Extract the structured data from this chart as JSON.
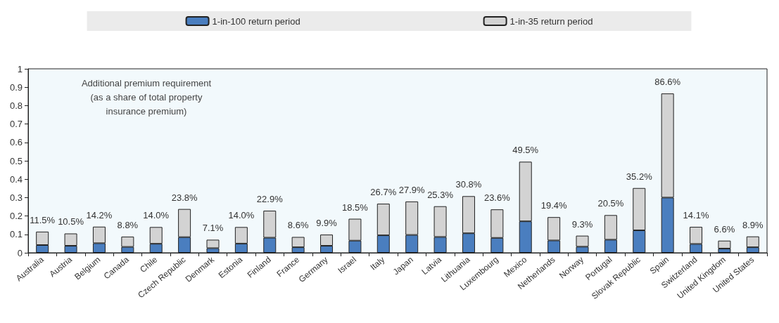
{
  "chart_data": {
    "type": "bar",
    "stacked": true,
    "categories": [
      "Australia",
      "Austria",
      "Belgium",
      "Canada",
      "Chile",
      "Czech Republic",
      "Denmark",
      "Estonia",
      "Finland",
      "France",
      "Germany",
      "Israel",
      "Italy",
      "Japan",
      "Latvia",
      "Lithuania",
      "Luxembourg",
      "Mexico",
      "Netherlands",
      "Norway",
      "Portugal",
      "Slovak Republic",
      "Spain",
      "Switzerland",
      "United Kingdom",
      "United States"
    ],
    "series": [
      {
        "name": "1-in-100 return period",
        "color": "#4a7ebf",
        "values": [
          0.042,
          0.038,
          0.052,
          0.032,
          0.049,
          0.085,
          0.025,
          0.05,
          0.082,
          0.03,
          0.038,
          0.066,
          0.095,
          0.097,
          0.086,
          0.106,
          0.081,
          0.171,
          0.067,
          0.033,
          0.071,
          0.122,
          0.3,
          0.048,
          0.023,
          0.03
        ]
      },
      {
        "name": "1-in-35 return period",
        "color": "#d3d3d3",
        "values": [
          0.073,
          0.067,
          0.09,
          0.056,
          0.091,
          0.153,
          0.046,
          0.09,
          0.147,
          0.056,
          0.061,
          0.119,
          0.172,
          0.182,
          0.167,
          0.202,
          0.155,
          0.324,
          0.127,
          0.06,
          0.134,
          0.23,
          0.566,
          0.093,
          0.043,
          0.059
        ]
      }
    ],
    "totals": [
      "11.5%",
      "10.5%",
      "14.2%",
      "8.8%",
      "14.0%",
      "23.8%",
      "7.1%",
      "14.0%",
      "22.9%",
      "8.6%",
      "9.9%",
      "18.5%",
      "26.7%",
      "27.9%",
      "25.3%",
      "30.8%",
      "23.6%",
      "49.5%",
      "19.4%",
      "9.3%",
      "20.5%",
      "35.2%",
      "86.6%",
      "14.1%",
      "6.6%",
      "8.9%"
    ],
    "annotations": [
      "Additional premium requirement\n(as a share of total property\ninsurance premium)"
    ],
    "ylim": [
      0,
      1
    ],
    "yticks": [
      0,
      0.1,
      0.2,
      0.3,
      0.4,
      0.5,
      0.6,
      0.7,
      0.8,
      0.9,
      1
    ],
    "grid": false,
    "legend": "top"
  }
}
